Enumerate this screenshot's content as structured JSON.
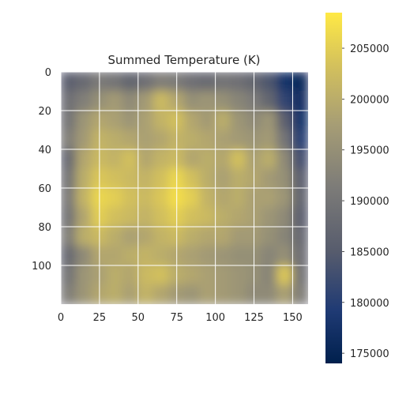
{
  "chart_data": {
    "type": "heatmap",
    "title": "Summed Temperature (K)",
    "xlabel": "",
    "ylabel": "",
    "x_ticks": [
      0,
      25,
      50,
      75,
      100,
      125,
      150
    ],
    "y_ticks": [
      0,
      20,
      40,
      60,
      80,
      100
    ],
    "xlim": [
      0,
      160
    ],
    "ylim": [
      120,
      0
    ],
    "grid": true,
    "colormap": "cividis",
    "colorbar": {
      "ticks": [
        175000,
        180000,
        185000,
        190000,
        195000,
        200000,
        205000
      ],
      "vmin": 174000,
      "vmax": 208500
    },
    "grid_shape": {
      "rows": 12,
      "cols": 16
    },
    "values": [
      [
        186000,
        188000,
        191000,
        190000,
        187000,
        189000,
        192000,
        191000,
        189000,
        188000,
        190000,
        189000,
        187000,
        184000,
        178000,
        176000
      ],
      [
        189000,
        192000,
        195000,
        197000,
        194000,
        197000,
        202000,
        199000,
        195000,
        196000,
        195000,
        193000,
        191000,
        187000,
        181000,
        177000
      ],
      [
        190000,
        196000,
        199000,
        198000,
        196000,
        198000,
        201000,
        203000,
        199000,
        197000,
        200000,
        196000,
        194000,
        196000,
        186000,
        178000
      ],
      [
        192000,
        197000,
        201000,
        200000,
        199000,
        198000,
        199000,
        201000,
        200000,
        199000,
        198000,
        197000,
        196000,
        197000,
        190000,
        180000
      ],
      [
        188000,
        199000,
        202000,
        201000,
        203000,
        199000,
        201000,
        202000,
        199000,
        200000,
        199000,
        203000,
        198000,
        200000,
        194000,
        183000
      ],
      [
        190000,
        200000,
        204000,
        203000,
        202000,
        201000,
        203000,
        206000,
        203000,
        200000,
        198000,
        200000,
        199000,
        197000,
        195000,
        186000
      ],
      [
        191000,
        201000,
        206000,
        205000,
        203000,
        202000,
        204000,
        207000,
        205000,
        201000,
        199000,
        200000,
        198000,
        198000,
        196000,
        187000
      ],
      [
        190000,
        199000,
        205000,
        203000,
        202000,
        201000,
        203000,
        205000,
        203000,
        202000,
        200000,
        199000,
        198000,
        196000,
        194000,
        186000
      ],
      [
        192000,
        200000,
        202000,
        200000,
        198000,
        199000,
        201000,
        202000,
        200000,
        199000,
        199000,
        197000,
        197000,
        195000,
        193000,
        188000
      ],
      [
        188000,
        194000,
        199000,
        199000,
        200000,
        201000,
        200000,
        199000,
        198000,
        197000,
        196000,
        195000,
        195000,
        193000,
        195000,
        189000
      ],
      [
        190000,
        196000,
        198000,
        200000,
        199000,
        202000,
        203000,
        200000,
        199000,
        198000,
        197000,
        196000,
        195000,
        193000,
        204000,
        190000
      ],
      [
        192000,
        196000,
        199000,
        200000,
        198000,
        201000,
        199000,
        197000,
        196000,
        198000,
        197000,
        196000,
        194000,
        194000,
        198000,
        192000
      ]
    ]
  }
}
